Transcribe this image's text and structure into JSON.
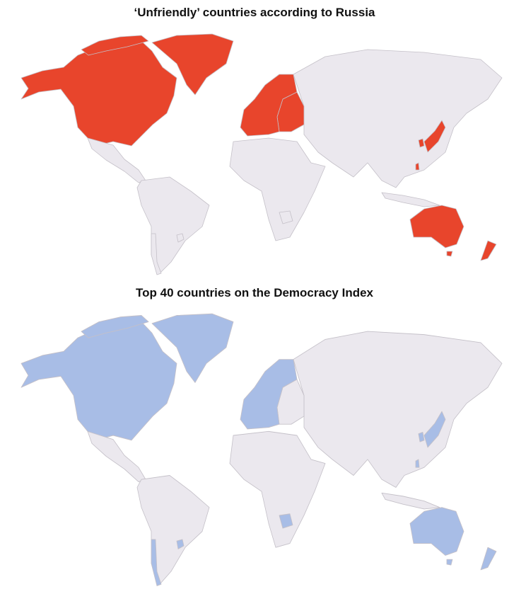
{
  "maps": [
    {
      "title": "‘Unfriendly’ countries according to Russia"
    },
    {
      "title": "Top 40 countries on the Democracy Index"
    }
  ]
}
